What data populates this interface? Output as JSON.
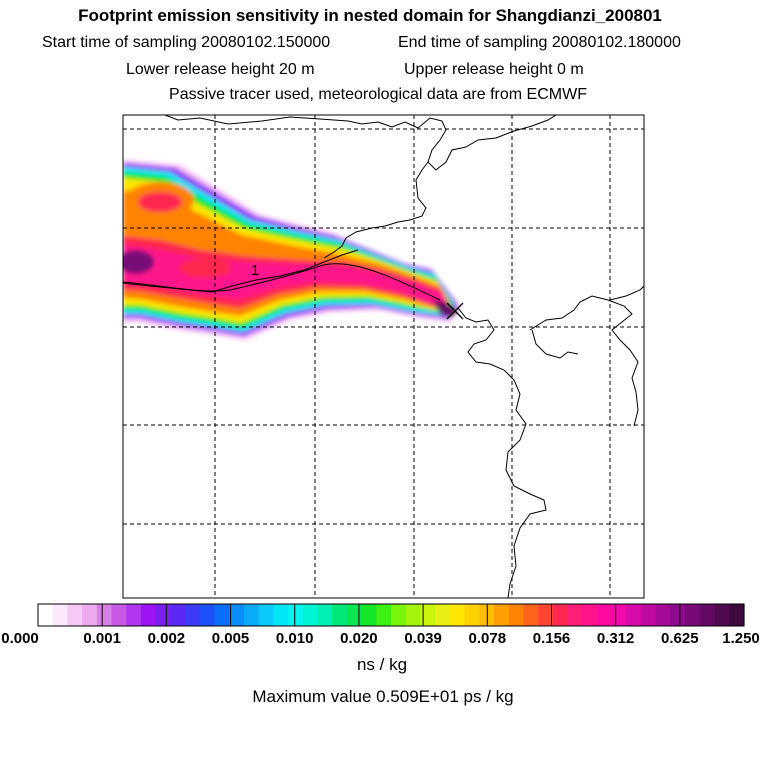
{
  "titles": {
    "main": "Footprint emission sensitivity in nested domain for Shangdianzi_200801",
    "start_sampling": "Start time of sampling 20080102.150000",
    "end_sampling": "End time of sampling 20080102.180000",
    "lower_release": "Lower release height   20 m",
    "upper_release": "Upper release height    0 m",
    "tracer_info": "Passive tracer used, meteorological data are from ECMWF"
  },
  "map": {
    "contour_label": "1",
    "receptor_marker": "x-marker-icon"
  },
  "colorbar": {
    "tick_labels": [
      "0.000",
      "0.001",
      "0.002",
      "0.005",
      "0.010",
      "0.020",
      "0.039",
      "0.078",
      "0.156",
      "0.312",
      "0.625",
      "1.250"
    ],
    "colors": [
      "#ffffff",
      "#fce8fc",
      "#f5c8f5",
      "#eeaaee",
      "#d980e6",
      "#c659e6",
      "#b236f0",
      "#9a14f5",
      "#7a1ff0",
      "#5a2af5",
      "#3c3cf7",
      "#1e50fa",
      "#0a6efa",
      "#0a8cfa",
      "#0aaafa",
      "#0ac8fa",
      "#00e6f5",
      "#00f5f0",
      "#00f5d2",
      "#00f0b4",
      "#00e678",
      "#0ae650",
      "#14e628",
      "#3cf014",
      "#78f50a",
      "#a0f50a",
      "#c8f50a",
      "#e6f014",
      "#ffe600",
      "#ffd200",
      "#ffbe00",
      "#ffa000",
      "#ff8200",
      "#ff641e",
      "#ff4632",
      "#ff2850",
      "#ff1e78",
      "#ff148c",
      "#ff0aa0",
      "#f00aaa",
      "#d70aaa",
      "#be0aa0",
      "#a50a96",
      "#8c0a8c",
      "#780a78",
      "#640a64",
      "#500a50",
      "#3c0a3c"
    ],
    "units": "ns / kg"
  },
  "footer": {
    "max_value": "Maximum value  0.509E+01 ps / kg"
  }
}
